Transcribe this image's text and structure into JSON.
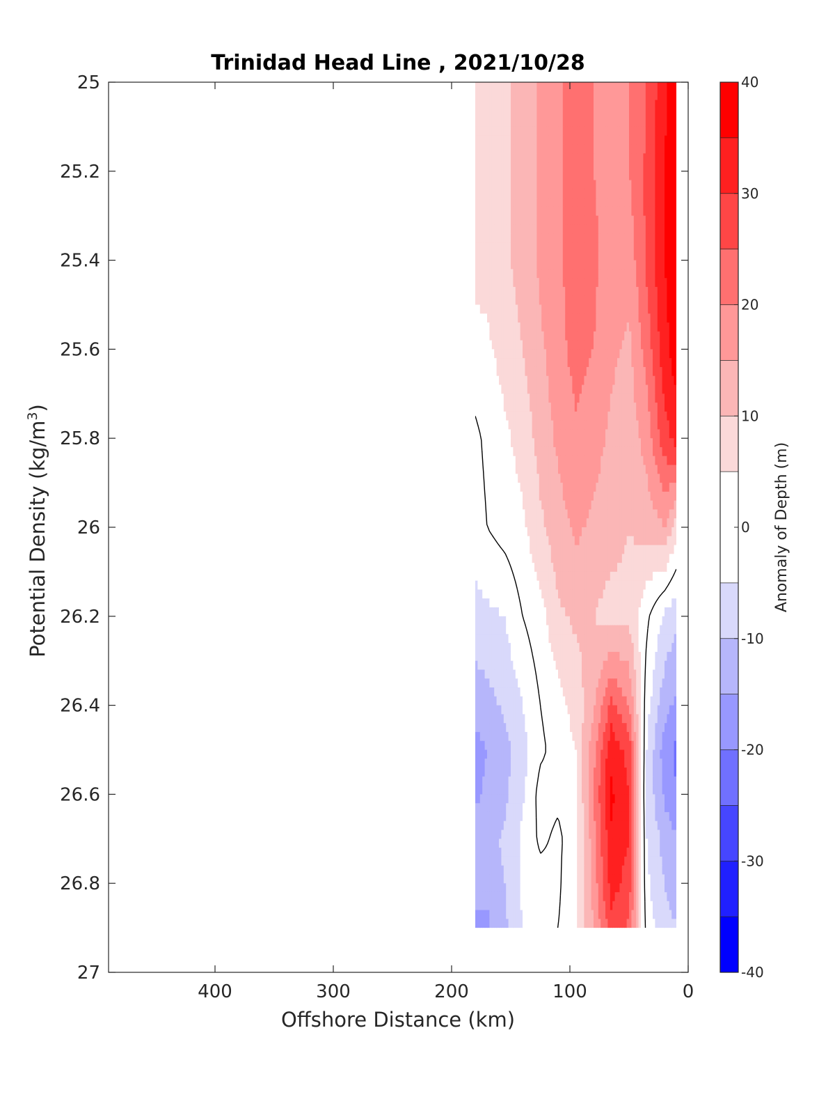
{
  "chart_data": {
    "type": "heatmap",
    "subtype": "filled-contour",
    "title": "Trinidad Head Line , 2021/10/28",
    "xlabel": "Offshore Distance (km)",
    "ylabel_main": "Potential Density (kg/m",
    "ylabel_sup": "3",
    "ylabel_close": ")",
    "xlim": [
      490,
      0
    ],
    "x_reversed": true,
    "ylim": [
      25,
      27
    ],
    "y_reversed": true,
    "xticks": [
      400,
      300,
      200,
      100,
      0
    ],
    "xtick_labels": [
      "400",
      "300",
      "200",
      "100",
      "0"
    ],
    "yticks": [
      25,
      25.2,
      25.4,
      25.6,
      25.8,
      26,
      26.2,
      26.4,
      26.6,
      26.8,
      27
    ],
    "ytick_labels": [
      "25",
      "25.2",
      "25.4",
      "25.6",
      "25.8",
      "26",
      "26.2",
      "26.4",
      "26.6",
      "26.8",
      "27"
    ],
    "data_extent": {
      "x": [
        180,
        10
      ],
      "y": [
        25,
        26.9
      ]
    },
    "x": [
      180,
      170,
      155,
      140,
      125,
      110,
      95,
      80,
      65,
      50,
      35,
      20,
      10
    ],
    "y": [
      25.0,
      25.2,
      25.4,
      25.6,
      25.8,
      26.0,
      26.2,
      26.4,
      26.5,
      26.6,
      26.7,
      26.8,
      26.9
    ],
    "z": [
      [
        8,
        8,
        9,
        12,
        16,
        19,
        22,
        20,
        18,
        20,
        25,
        34,
        38
      ],
      [
        8,
        8,
        9,
        12,
        16,
        19,
        22,
        20,
        18,
        20,
        26,
        35,
        39
      ],
      [
        7,
        7,
        9,
        12,
        16,
        19,
        23,
        21,
        18,
        17,
        26,
        35,
        39
      ],
      [
        3,
        4,
        7,
        10,
        14,
        18,
        22,
        20,
        16,
        14,
        22,
        33,
        38
      ],
      [
        -1,
        1,
        4,
        7,
        12,
        16,
        19,
        17,
        14,
        12,
        17,
        28,
        32
      ],
      [
        -2,
        0,
        2,
        4,
        9,
        13,
        16,
        14,
        12,
        10,
        12,
        15,
        8
      ],
      [
        -7,
        -6,
        -5,
        0,
        3,
        9,
        11,
        10,
        8,
        9,
        1,
        -6,
        -9
      ],
      [
        -13,
        -12,
        -9,
        -5,
        0,
        3,
        7,
        14,
        26,
        20,
        -3,
        -13,
        -16
      ],
      [
        -17,
        -15,
        -12,
        -7,
        -1,
        2,
        5,
        18,
        34,
        28,
        -5,
        -18,
        -21
      ],
      [
        -16,
        -14,
        -11,
        -6,
        2,
        1,
        4,
        20,
        36,
        30,
        -6,
        -16,
        -20
      ],
      [
        -13,
        -12,
        -9,
        -4,
        1,
        -1,
        3,
        18,
        34,
        30,
        -5,
        -12,
        -14
      ],
      [
        -12,
        -14,
        -10,
        -4,
        -2,
        -1,
        5,
        17,
        32,
        28,
        -4,
        -10,
        -12
      ],
      [
        -17,
        -16,
        -11,
        -5,
        -2,
        0,
        4,
        15,
        28,
        24,
        -2,
        -8,
        -10
      ]
    ],
    "contour_line_level": 0,
    "colorbar": {
      "label": "Anomaly of Depth (m)",
      "levels": [
        -40,
        -35,
        -30,
        -25,
        -20,
        -15,
        -10,
        -5,
        5,
        10,
        15,
        20,
        25,
        30,
        35,
        40
      ],
      "ticks": [
        40,
        30,
        20,
        10,
        0,
        -10,
        -20,
        -30,
        -40
      ],
      "tick_labels": [
        "40",
        "30",
        "20",
        "10",
        "0",
        "-10",
        "-20",
        "-30",
        "-40"
      ],
      "colors": [
        "#0000ff",
        "#2020ff",
        "#4646ff",
        "#7070ff",
        "#9898ff",
        "#b6b6fb",
        "#d9d9fb",
        "#ffffff",
        "#fbd9d9",
        "#fbb6b6",
        "#ff9898",
        "#ff7070",
        "#ff4646",
        "#ff2020",
        "#ff0000"
      ]
    }
  }
}
